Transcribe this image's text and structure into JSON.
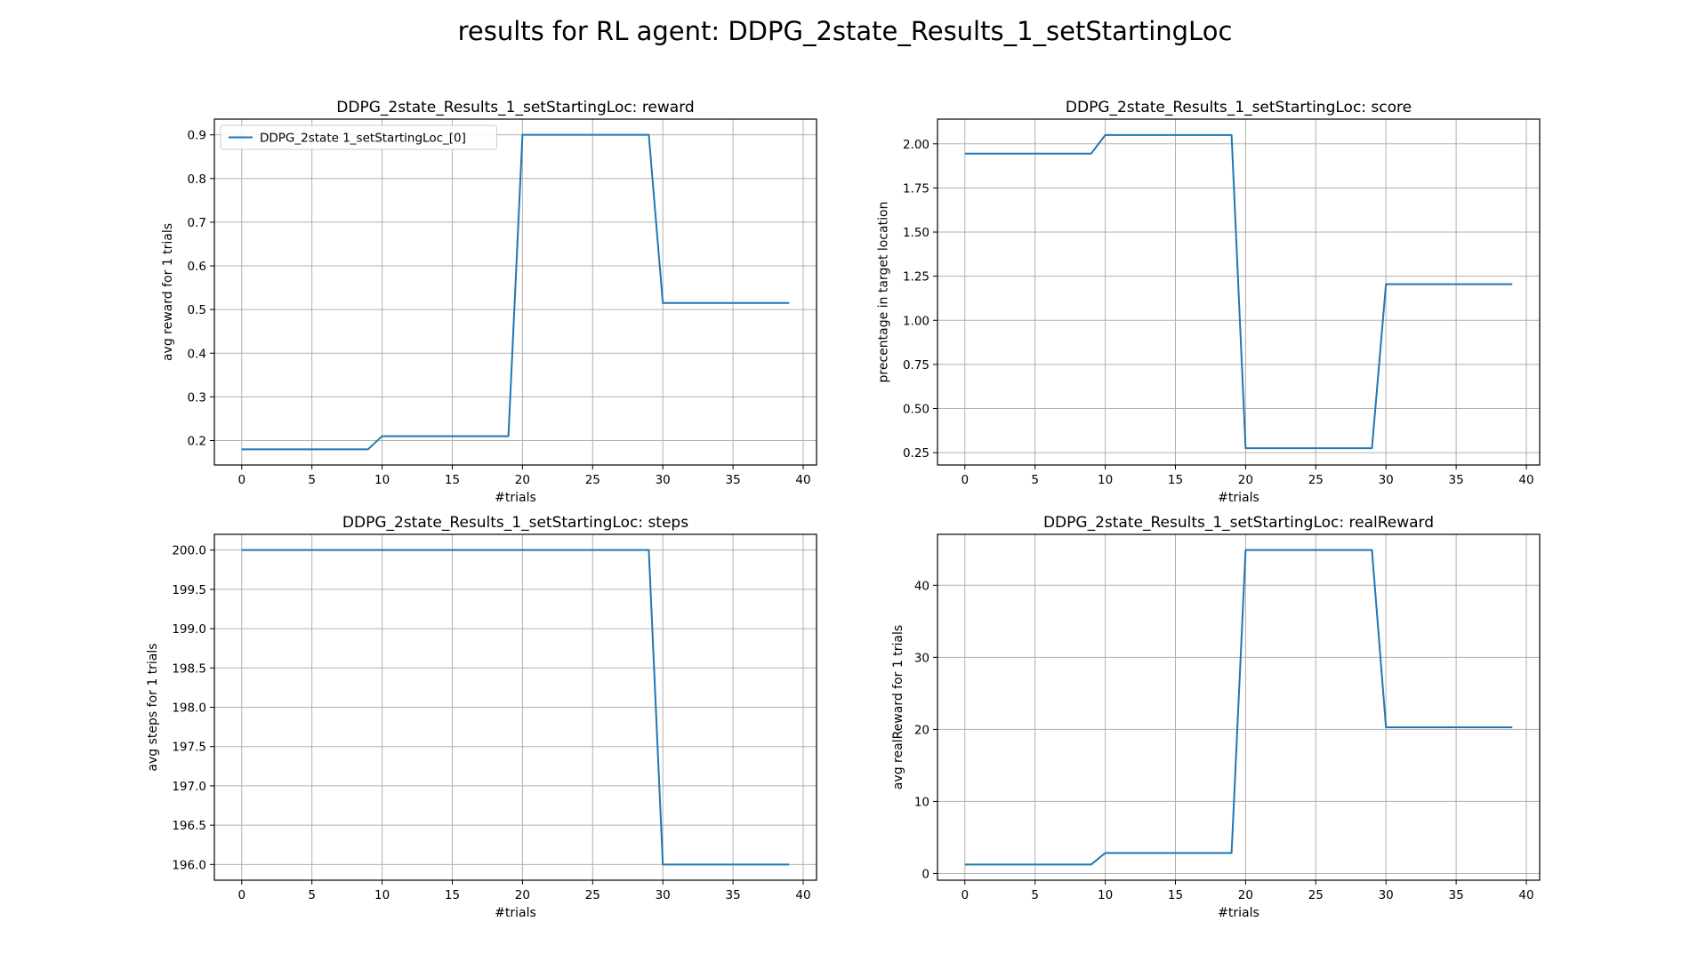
{
  "figure": {
    "title": "results for RL agent: DDPG_2state_Results_1_setStartingLoc",
    "line_color": "#1f77b4"
  },
  "chart_data": [
    {
      "type": "line",
      "title": "DDPG_2state_Results_1_setStartingLoc: reward",
      "xlabel": "#trials",
      "ylabel": "avg reward for 1 trials",
      "xlim": [
        -1.95,
        40.95
      ],
      "ylim": [
        0.144,
        0.936
      ],
      "xticks": [
        0,
        5,
        10,
        15,
        20,
        25,
        30,
        35,
        40
      ],
      "yticks": [
        0.2,
        0.3,
        0.4,
        0.5,
        0.6,
        0.7,
        0.8,
        0.9
      ],
      "ytick_labels": [
        "0.2",
        "0.3",
        "0.4",
        "0.5",
        "0.6",
        "0.7",
        "0.8",
        "0.9"
      ],
      "grid": true,
      "legend": {
        "placement": "upper-left",
        "entries": [
          "DDPG_2state 1_setStartingLoc_[0]"
        ]
      },
      "series": [
        {
          "name": "DDPG_2state 1_setStartingLoc_[0]",
          "x": [
            0,
            9,
            10,
            19,
            20,
            29,
            30,
            39
          ],
          "y": [
            0.18,
            0.18,
            0.21,
            0.21,
            0.9,
            0.9,
            0.515,
            0.515
          ]
        }
      ]
    },
    {
      "type": "line",
      "title": "DDPG_2state_Results_1_setStartingLoc: score",
      "xlabel": "#trials",
      "ylabel": "precentage in target location",
      "xlim": [
        -1.95,
        40.95
      ],
      "ylim": [
        0.18,
        2.14
      ],
      "xticks": [
        0,
        5,
        10,
        15,
        20,
        25,
        30,
        35,
        40
      ],
      "yticks": [
        0.25,
        0.5,
        0.75,
        1.0,
        1.25,
        1.5,
        1.75,
        2.0
      ],
      "ytick_labels": [
        "0.25",
        "0.50",
        "0.75",
        "1.00",
        "1.25",
        "1.50",
        "1.75",
        "2.00"
      ],
      "grid": true,
      "series": [
        {
          "x": [
            0,
            9,
            10,
            19,
            20,
            29,
            30,
            39
          ],
          "y": [
            1.945,
            1.945,
            2.05,
            2.05,
            0.275,
            0.275,
            1.205,
            1.205
          ]
        }
      ]
    },
    {
      "type": "line",
      "title": "DDPG_2state_Results_1_setStartingLoc: steps",
      "xlabel": "#trials",
      "ylabel": "avg steps for 1 trials",
      "xlim": [
        -1.95,
        40.95
      ],
      "ylim": [
        195.8,
        200.2
      ],
      "xticks": [
        0,
        5,
        10,
        15,
        20,
        25,
        30,
        35,
        40
      ],
      "yticks": [
        196.0,
        196.5,
        197.0,
        197.5,
        198.0,
        198.5,
        199.0,
        199.5,
        200.0
      ],
      "ytick_labels": [
        "196.0",
        "196.5",
        "197.0",
        "197.5",
        "198.0",
        "198.5",
        "199.0",
        "199.5",
        "200.0"
      ],
      "grid": true,
      "series": [
        {
          "x": [
            0,
            29,
            30,
            39
          ],
          "y": [
            200.0,
            200.0,
            196.0,
            196.0
          ]
        }
      ]
    },
    {
      "type": "line",
      "title": "DDPG_2state_Results_1_setStartingLoc: realReward",
      "xlabel": "#trials",
      "ylabel": "avg realReward for 1 trials",
      "xlim": [
        -1.95,
        40.95
      ],
      "ylim": [
        -0.93,
        47.07
      ],
      "xticks": [
        0,
        5,
        10,
        15,
        20,
        25,
        30,
        35,
        40
      ],
      "yticks": [
        0,
        10,
        20,
        30,
        40
      ],
      "ytick_labels": [
        "0",
        "10",
        "20",
        "30",
        "40"
      ],
      "grid": true,
      "series": [
        {
          "x": [
            0,
            9,
            10,
            19,
            20,
            29,
            30,
            39
          ],
          "y": [
            1.25,
            1.25,
            2.85,
            2.85,
            44.9,
            44.9,
            20.3,
            20.3
          ]
        }
      ]
    }
  ]
}
